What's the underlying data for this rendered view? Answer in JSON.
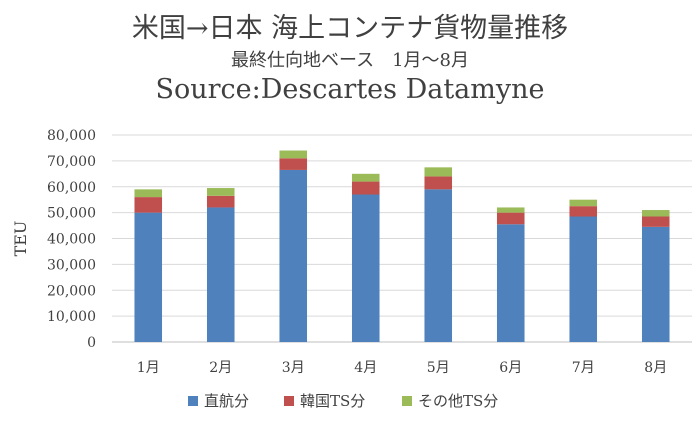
{
  "chart_data": {
    "type": "bar",
    "stacked": true,
    "title": "米国→日本 海上コンテナ貨物量推移",
    "subtitle": "最終仕向地ベース　1月～8月",
    "source": "Source:Descartes Datamyne",
    "ylabel": "TEU",
    "xlabel": "",
    "ylim": [
      0,
      80000
    ],
    "yticks": [
      "0",
      "10,000",
      "20,000",
      "30,000",
      "40,000",
      "50,000",
      "60,000",
      "70,000",
      "80,000"
    ],
    "categories": [
      "1月",
      "2月",
      "3月",
      "4月",
      "5月",
      "6月",
      "7月",
      "8月"
    ],
    "series": [
      {
        "name": "直航分",
        "color": "#4f81bd",
        "values": [
          50000,
          52000,
          66500,
          57000,
          59000,
          45500,
          48500,
          44500
        ]
      },
      {
        "name": "韓国TS分",
        "color": "#c0504d",
        "values": [
          6000,
          4500,
          4500,
          5000,
          5000,
          4500,
          4000,
          4000
        ]
      },
      {
        "name": "その他TS分",
        "color": "#9bbb59",
        "values": [
          3000,
          3000,
          3000,
          3000,
          3500,
          2000,
          2500,
          2500
        ]
      }
    ],
    "grid": true,
    "legend_position": "bottom"
  }
}
